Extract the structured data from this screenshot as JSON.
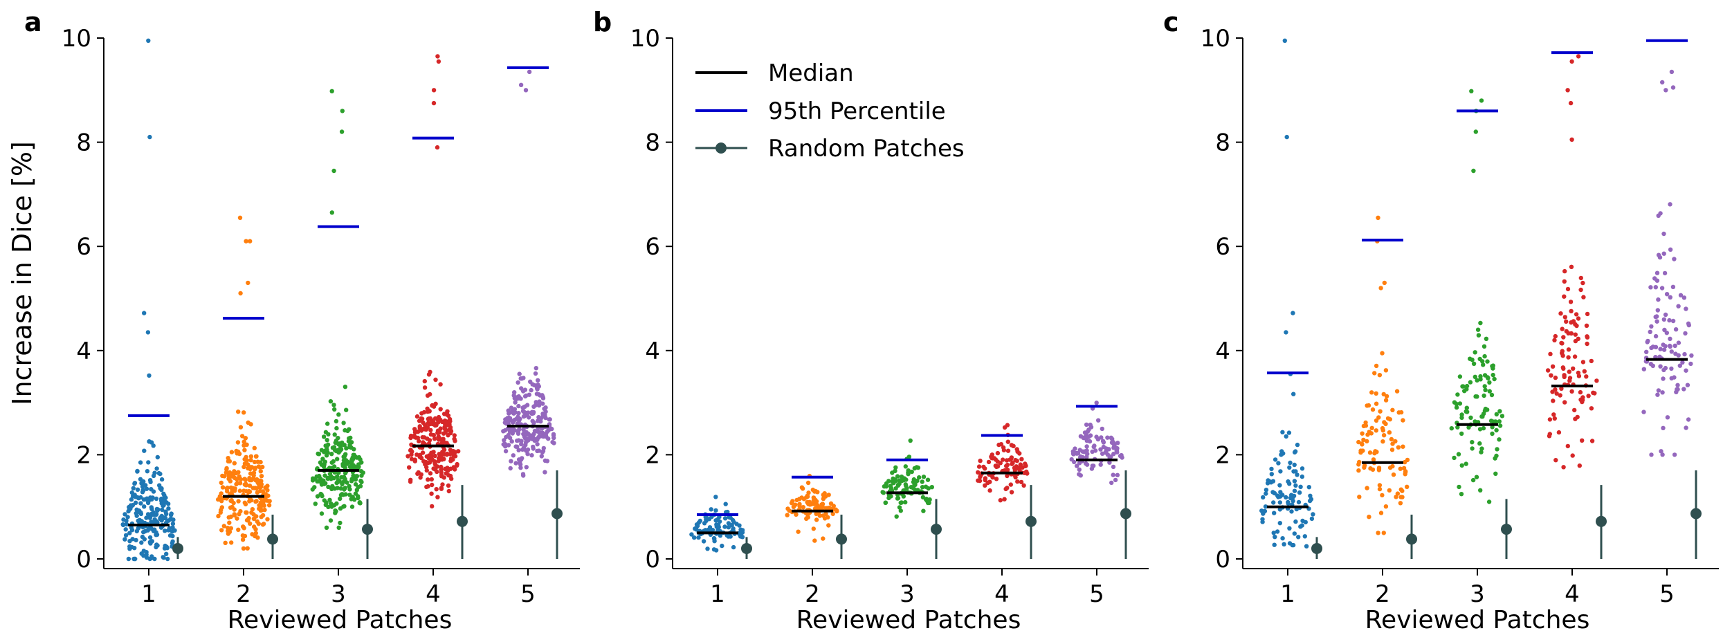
{
  "figure": {
    "panel_letters": [
      "a",
      "b",
      "c"
    ],
    "ylabel": "Increase in Dice [%]",
    "xlabel": "Reviewed Patches",
    "legend": {
      "items": [
        "Median",
        "95th Percentile",
        "Random Patches"
      ],
      "location": "top-left",
      "panel": "b"
    },
    "colors": {
      "series": [
        "#1f77b4",
        "#ff7f0e",
        "#2ca02c",
        "#d62728",
        "#9467bd"
      ],
      "median": "#000000",
      "p95": "#0000cc",
      "random": "#2f4f4f"
    }
  },
  "chart_data": [
    {
      "panel": "a",
      "type": "scatter",
      "categories": [
        "1",
        "2",
        "3",
        "4",
        "5"
      ],
      "ylim": [
        0,
        10
      ],
      "yticks": [
        "0",
        "2",
        "4",
        "6",
        "8",
        "10"
      ],
      "grid": false,
      "median": [
        0.65,
        1.2,
        1.7,
        2.17,
        2.55
      ],
      "p95": [
        2.75,
        4.62,
        6.38,
        8.08,
        9.43
      ],
      "distributions": [
        {
          "n": 230,
          "mode": 0.55,
          "sigma": 0.62,
          "min": 0.0,
          "max": 3.6,
          "outliers": [
            9.95,
            8.1,
            4.72,
            4.35,
            3.52
          ]
        },
        {
          "n": 230,
          "mode": 1.05,
          "sigma": 0.65,
          "min": 0.2,
          "max": 4.9,
          "outliers": [
            6.55,
            6.1,
            6.1,
            5.3,
            5.1
          ]
        },
        {
          "n": 230,
          "mode": 1.45,
          "sigma": 0.6,
          "min": 0.6,
          "max": 6.0,
          "outliers": [
            8.98,
            8.6,
            8.2,
            7.45,
            6.65
          ]
        },
        {
          "n": 230,
          "mode": 1.9,
          "sigma": 0.6,
          "min": 0.8,
          "max": 7.0,
          "outliers": [
            9.65,
            9.55,
            9.0,
            8.75,
            7.9
          ]
        },
        {
          "n": 230,
          "mode": 2.3,
          "sigma": 0.55,
          "min": 1.2,
          "max": 8.2,
          "outliers": [
            9.35,
            9.1,
            9.0
          ]
        }
      ],
      "random_patches": [
        {
          "mean": 0.2,
          "low": 0.0,
          "high": 0.42
        },
        {
          "mean": 0.38,
          "low": 0.0,
          "high": 0.85
        },
        {
          "mean": 0.57,
          "low": 0.0,
          "high": 1.15
        },
        {
          "mean": 0.72,
          "low": 0.0,
          "high": 1.42
        },
        {
          "mean": 0.87,
          "low": 0.0,
          "high": 1.7
        }
      ]
    },
    {
      "panel": "b",
      "type": "scatter",
      "categories": [
        "1",
        "2",
        "3",
        "4",
        "5"
      ],
      "ylim": [
        0,
        10
      ],
      "yticks": [
        "0",
        "2",
        "4",
        "6",
        "8",
        "10"
      ],
      "grid": false,
      "median": [
        0.5,
        0.92,
        1.27,
        1.65,
        1.9
      ],
      "p95": [
        0.85,
        1.57,
        1.9,
        2.37,
        2.93
      ],
      "distributions": [
        {
          "n": 100,
          "mode": 0.47,
          "sigma": 0.22,
          "min": 0.05,
          "max": 1.2,
          "outliers": []
        },
        {
          "n": 100,
          "mode": 0.9,
          "sigma": 0.25,
          "min": 0.35,
          "max": 1.85,
          "outliers": []
        },
        {
          "n": 100,
          "mode": 1.25,
          "sigma": 0.3,
          "min": 0.6,
          "max": 2.55,
          "outliers": []
        },
        {
          "n": 100,
          "mode": 1.62,
          "sigma": 0.33,
          "min": 0.85,
          "max": 3.15,
          "outliers": []
        },
        {
          "n": 100,
          "mode": 1.88,
          "sigma": 0.38,
          "min": 1.15,
          "max": 3.35,
          "outliers": []
        }
      ],
      "random_patches": [
        {
          "mean": 0.2,
          "low": 0.0,
          "high": 0.42
        },
        {
          "mean": 0.38,
          "low": 0.0,
          "high": 0.85
        },
        {
          "mean": 0.57,
          "low": 0.0,
          "high": 1.15
        },
        {
          "mean": 0.72,
          "low": 0.0,
          "high": 1.42
        },
        {
          "mean": 0.87,
          "low": 0.0,
          "high": 1.7
        }
      ]
    },
    {
      "panel": "c",
      "type": "scatter",
      "categories": [
        "1",
        "2",
        "3",
        "4",
        "5"
      ],
      "ylim": [
        0,
        10
      ],
      "yticks": [
        "0",
        "2",
        "4",
        "6",
        "8",
        "10"
      ],
      "grid": false,
      "median": [
        1.0,
        1.85,
        2.58,
        3.32,
        3.83
      ],
      "p95": [
        3.57,
        6.12,
        8.6,
        9.72,
        9.95
      ],
      "distributions": [
        {
          "n": 100,
          "mode": 0.9,
          "sigma": 0.65,
          "min": 0.0,
          "max": 3.3,
          "outliers": [
            9.95,
            8.1,
            4.72,
            4.35,
            3.55
          ]
        },
        {
          "n": 100,
          "mode": 1.7,
          "sigma": 1.0,
          "min": 0.5,
          "max": 5.0,
          "outliers": [
            6.55,
            6.1,
            5.3,
            5.2
          ]
        },
        {
          "n": 100,
          "mode": 2.4,
          "sigma": 1.0,
          "min": 1.0,
          "max": 6.6,
          "outliers": [
            8.98,
            8.8,
            8.6,
            8.2,
            7.45
          ]
        },
        {
          "n": 100,
          "mode": 3.1,
          "sigma": 1.1,
          "min": 1.3,
          "max": 8.0,
          "outliers": [
            9.65,
            9.55,
            9.0,
            8.75,
            8.05
          ]
        },
        {
          "n": 100,
          "mode": 3.6,
          "sigma": 1.2,
          "min": 2.0,
          "max": 8.1,
          "outliers": [
            9.35,
            9.15,
            9.05,
            9.0
          ]
        }
      ],
      "random_patches": [
        {
          "mean": 0.2,
          "low": 0.0,
          "high": 0.42
        },
        {
          "mean": 0.38,
          "low": 0.0,
          "high": 0.85
        },
        {
          "mean": 0.57,
          "low": 0.0,
          "high": 1.15
        },
        {
          "mean": 0.72,
          "low": 0.0,
          "high": 1.42
        },
        {
          "mean": 0.87,
          "low": 0.0,
          "high": 1.7
        }
      ]
    }
  ]
}
